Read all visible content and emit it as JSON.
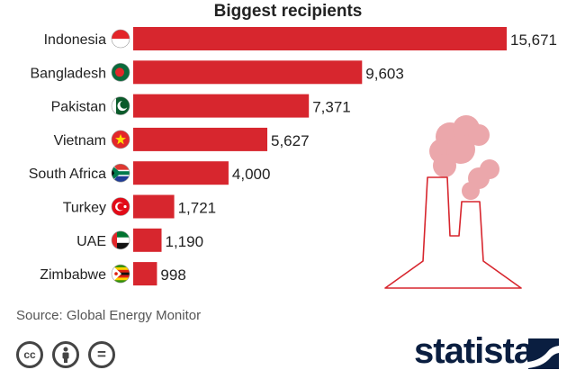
{
  "chart_data": {
    "type": "bar",
    "orientation": "horizontal",
    "title": "Biggest recipients",
    "categories": [
      "Indonesia",
      "Bangladesh",
      "Pakistan",
      "Vietnam",
      "South Africa",
      "Turkey",
      "UAE",
      "Zimbabwe"
    ],
    "values": [
      15671,
      9603,
      7371,
      5627,
      4000,
      1721,
      1190,
      998
    ],
    "value_labels": [
      "15,671",
      "9,603",
      "7,371",
      "5,627",
      "4,000",
      "1,721",
      "1,190",
      "998"
    ],
    "bar_color": "#d7262e",
    "xlim": [
      0,
      15671
    ],
    "grid": false,
    "flags": [
      "indonesia-flag-icon",
      "bangladesh-flag-icon",
      "pakistan-flag-icon",
      "vietnam-flag-icon",
      "south-africa-flag-icon",
      "turkey-flag-icon",
      "uae-flag-icon",
      "zimbabwe-flag-icon"
    ]
  },
  "source": "Source: Global Energy Monitor",
  "license_icons": [
    "cc-icon",
    "attribution-icon",
    "no-derivatives-icon"
  ],
  "license_glyphs": {
    "cc": "cc",
    "nd": "="
  },
  "brand": "statista",
  "illustration": "power-plant-icon"
}
